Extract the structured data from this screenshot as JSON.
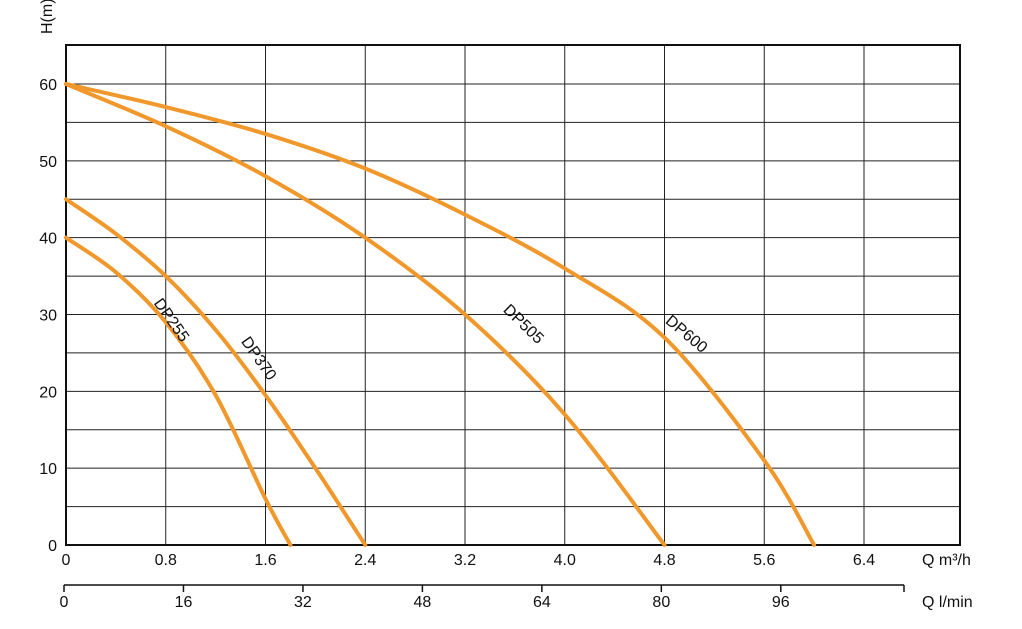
{
  "chart_data": {
    "type": "line",
    "ylabel": "H(m)",
    "xlabel": "Q m³/h",
    "x2label": "Q l/min",
    "xlim": [
      0,
      7.2
    ],
    "ylim": [
      0,
      65
    ],
    "x_ticks": [
      "0",
      "0.8",
      "1.6",
      "2.4",
      "3.2",
      "4.0",
      "4.8",
      "5.6",
      "6.4"
    ],
    "x_tick_values": [
      0,
      0.8,
      1.6,
      2.4,
      3.2,
      4.0,
      4.8,
      5.6,
      6.4
    ],
    "y_ticks": [
      "0",
      "10",
      "20",
      "30",
      "40",
      "50",
      "60"
    ],
    "y_tick_values": [
      0,
      10,
      20,
      30,
      40,
      50,
      60
    ],
    "x2_ticks": [
      "0",
      "16",
      "32",
      "48",
      "64",
      "80",
      "96"
    ],
    "x2_tick_values": [
      0,
      16,
      32,
      48,
      64,
      80,
      96
    ],
    "grid": true,
    "curve_color": "#f0982c",
    "series": [
      {
        "name": "DP255",
        "x": [
          0,
          0.4,
          0.8,
          1.2,
          1.6,
          1.8
        ],
        "y": [
          40,
          35.5,
          29,
          19.5,
          6,
          0
        ]
      },
      {
        "name": "DP370",
        "x": [
          0,
          0.4,
          0.8,
          1.2,
          1.6,
          2.0,
          2.4
        ],
        "y": [
          45,
          40.5,
          35,
          28,
          19.5,
          10,
          0
        ]
      },
      {
        "name": "DP505",
        "x": [
          0,
          0.8,
          1.6,
          2.4,
          3.2,
          4.0,
          4.8
        ],
        "y": [
          60,
          54.5,
          48,
          40,
          30,
          17,
          0
        ]
      },
      {
        "name": "DP600",
        "x": [
          0,
          0.8,
          1.6,
          2.4,
          3.2,
          4.0,
          4.8,
          5.6,
          6.0
        ],
        "y": [
          60,
          57,
          53.5,
          49,
          43,
          36,
          27,
          11,
          0
        ]
      }
    ]
  }
}
